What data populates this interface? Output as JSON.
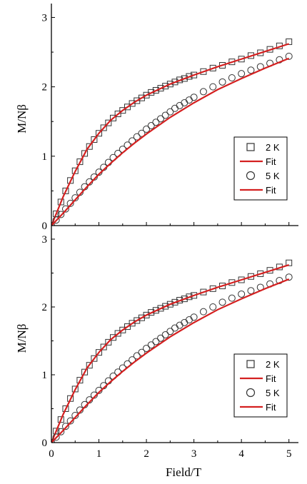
{
  "chart_data": [
    {
      "type": "scatter",
      "ylabel": "M/Nβ",
      "xlabel": "",
      "xlim": [
        0,
        5.2
      ],
      "ylim": [
        0,
        3.2
      ],
      "xticks": [],
      "yticks": [
        "0",
        "1",
        "2",
        "3"
      ],
      "legend_position": "lower-right",
      "series": [
        {
          "name": "2 K",
          "kind": "marker",
          "marker": "square",
          "color": "#333333",
          "x": [
            0,
            0.1,
            0.2,
            0.3,
            0.4,
            0.5,
            0.6,
            0.7,
            0.8,
            0.9,
            1.0,
            1.1,
            1.2,
            1.3,
            1.4,
            1.5,
            1.6,
            1.7,
            1.8,
            1.9,
            2.0,
            2.1,
            2.2,
            2.3,
            2.4,
            2.5,
            2.6,
            2.7,
            2.8,
            2.9,
            3.0,
            3.2,
            3.4,
            3.6,
            3.8,
            4.0,
            4.2,
            4.4,
            4.6,
            4.8,
            5.0
          ],
          "y": [
            0,
            0.17,
            0.34,
            0.5,
            0.65,
            0.79,
            0.92,
            1.04,
            1.14,
            1.24,
            1.33,
            1.41,
            1.48,
            1.55,
            1.61,
            1.66,
            1.71,
            1.76,
            1.8,
            1.84,
            1.88,
            1.92,
            1.95,
            1.98,
            2.01,
            2.04,
            2.07,
            2.1,
            2.12,
            2.15,
            2.17,
            2.22,
            2.27,
            2.31,
            2.36,
            2.4,
            2.45,
            2.49,
            2.54,
            2.59,
            2.65
          ]
        },
        {
          "name": "Fit",
          "kind": "line",
          "color": "#d42020",
          "x": [
            0,
            0.25,
            0.5,
            0.75,
            1.0,
            1.25,
            1.5,
            1.75,
            2.0,
            2.5,
            3.0,
            3.5,
            4.0,
            4.5,
            5.0
          ],
          "y": [
            0,
            0.42,
            0.78,
            1.1,
            1.33,
            1.52,
            1.66,
            1.78,
            1.88,
            2.04,
            2.17,
            2.29,
            2.4,
            2.51,
            2.62
          ]
        },
        {
          "name": "5 K",
          "kind": "marker",
          "marker": "circle",
          "color": "#333333",
          "x": [
            0,
            0.1,
            0.2,
            0.3,
            0.4,
            0.5,
            0.6,
            0.7,
            0.8,
            0.9,
            1.0,
            1.1,
            1.2,
            1.3,
            1.4,
            1.5,
            1.6,
            1.7,
            1.8,
            1.9,
            2.0,
            2.1,
            2.2,
            2.3,
            2.4,
            2.5,
            2.6,
            2.7,
            2.8,
            2.9,
            3.0,
            3.2,
            3.4,
            3.6,
            3.8,
            4.0,
            4.2,
            4.4,
            4.6,
            4.8,
            5.0
          ],
          "y": [
            0,
            0.08,
            0.16,
            0.24,
            0.32,
            0.4,
            0.48,
            0.56,
            0.63,
            0.7,
            0.77,
            0.84,
            0.91,
            0.98,
            1.04,
            1.1,
            1.16,
            1.22,
            1.28,
            1.33,
            1.39,
            1.44,
            1.49,
            1.54,
            1.59,
            1.64,
            1.69,
            1.73,
            1.77,
            1.81,
            1.85,
            1.93,
            2.0,
            2.07,
            2.13,
            2.19,
            2.24,
            2.29,
            2.34,
            2.39,
            2.44
          ]
        },
        {
          "name": "Fit",
          "kind": "line",
          "color": "#d42020",
          "x": [
            0,
            0.25,
            0.5,
            0.75,
            1.0,
            1.25,
            1.5,
            1.75,
            2.0,
            2.5,
            3.0,
            3.5,
            4.0,
            4.5,
            5.0
          ],
          "y": [
            0,
            0.18,
            0.37,
            0.56,
            0.74,
            0.9,
            1.05,
            1.19,
            1.32,
            1.56,
            1.77,
            1.96,
            2.12,
            2.27,
            2.41
          ]
        }
      ]
    },
    {
      "type": "scatter",
      "ylabel": "M/Nβ",
      "xlabel": "Field/T",
      "xlim": [
        0,
        5.2
      ],
      "ylim": [
        0,
        3.2
      ],
      "xticks": [
        "0",
        "1",
        "2",
        "3",
        "4",
        "5"
      ],
      "yticks": [
        "0",
        "1",
        "2",
        "3"
      ],
      "legend_position": "lower-right",
      "series": [
        {
          "name": "2 K",
          "kind": "marker",
          "marker": "square",
          "color": "#333333",
          "x": [
            0,
            0.1,
            0.2,
            0.3,
            0.4,
            0.5,
            0.6,
            0.7,
            0.8,
            0.9,
            1.0,
            1.1,
            1.2,
            1.3,
            1.4,
            1.5,
            1.6,
            1.7,
            1.8,
            1.9,
            2.0,
            2.1,
            2.2,
            2.3,
            2.4,
            2.5,
            2.6,
            2.7,
            2.8,
            2.9,
            3.0,
            3.2,
            3.4,
            3.6,
            3.8,
            4.0,
            4.2,
            4.4,
            4.6,
            4.8,
            5.0
          ],
          "y": [
            0,
            0.17,
            0.34,
            0.5,
            0.65,
            0.79,
            0.92,
            1.04,
            1.14,
            1.24,
            1.33,
            1.41,
            1.48,
            1.55,
            1.61,
            1.66,
            1.71,
            1.76,
            1.8,
            1.84,
            1.88,
            1.92,
            1.95,
            1.98,
            2.01,
            2.04,
            2.07,
            2.1,
            2.12,
            2.15,
            2.17,
            2.22,
            2.27,
            2.31,
            2.36,
            2.4,
            2.45,
            2.49,
            2.54,
            2.59,
            2.65
          ]
        },
        {
          "name": "Fit",
          "kind": "line",
          "color": "#d42020",
          "x": [
            0,
            0.25,
            0.5,
            0.75,
            1.0,
            1.25,
            1.5,
            1.75,
            2.0,
            2.5,
            3.0,
            3.5,
            4.0,
            4.5,
            5.0
          ],
          "y": [
            0,
            0.42,
            0.78,
            1.1,
            1.33,
            1.52,
            1.66,
            1.78,
            1.88,
            2.04,
            2.17,
            2.29,
            2.4,
            2.51,
            2.62
          ]
        },
        {
          "name": "5 K",
          "kind": "marker",
          "marker": "circle",
          "color": "#333333",
          "x": [
            0,
            0.1,
            0.2,
            0.3,
            0.4,
            0.5,
            0.6,
            0.7,
            0.8,
            0.9,
            1.0,
            1.1,
            1.2,
            1.3,
            1.4,
            1.5,
            1.6,
            1.7,
            1.8,
            1.9,
            2.0,
            2.1,
            2.2,
            2.3,
            2.4,
            2.5,
            2.6,
            2.7,
            2.8,
            2.9,
            3.0,
            3.2,
            3.4,
            3.6,
            3.8,
            4.0,
            4.2,
            4.4,
            4.6,
            4.8,
            5.0
          ],
          "y": [
            0,
            0.08,
            0.16,
            0.24,
            0.32,
            0.4,
            0.48,
            0.56,
            0.63,
            0.7,
            0.77,
            0.84,
            0.91,
            0.98,
            1.04,
            1.1,
            1.16,
            1.22,
            1.28,
            1.33,
            1.39,
            1.44,
            1.49,
            1.54,
            1.59,
            1.64,
            1.69,
            1.73,
            1.77,
            1.81,
            1.85,
            1.93,
            2.0,
            2.07,
            2.13,
            2.19,
            2.24,
            2.29,
            2.34,
            2.39,
            2.44
          ]
        },
        {
          "name": "Fit",
          "kind": "line",
          "color": "#d42020",
          "x": [
            0,
            0.25,
            0.5,
            0.75,
            1.0,
            1.25,
            1.5,
            1.75,
            2.0,
            2.5,
            3.0,
            3.5,
            4.0,
            4.5,
            5.0
          ],
          "y": [
            0,
            0.18,
            0.37,
            0.56,
            0.74,
            0.9,
            1.05,
            1.19,
            1.32,
            1.56,
            1.77,
            1.96,
            2.12,
            2.27,
            2.41
          ]
        }
      ]
    }
  ]
}
